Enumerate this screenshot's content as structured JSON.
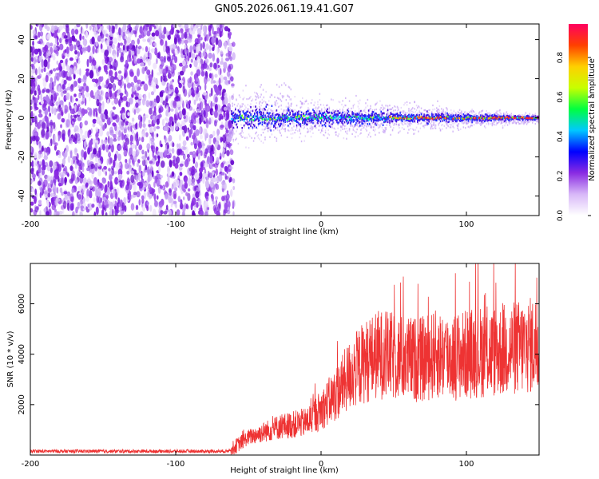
{
  "figure_title": "GN05.2026.061.19.41.G07",
  "chart_data": [
    {
      "type": "heatmap",
      "title": "GN05.2026.061.19.41.G07",
      "xlabel": "Height of straight line (km)",
      "ylabel": "Frequency (Hz)",
      "xlim": [
        -200,
        150
      ],
      "ylim": [
        -50,
        48
      ],
      "x_ticks": [
        -200,
        -100,
        0,
        100
      ],
      "y_ticks": [
        -40,
        -20,
        0,
        20,
        40
      ],
      "noise_region_x": [
        -200,
        -60
      ],
      "signal_start_x": -62,
      "ridge_center_hz": 0,
      "colorbar": {
        "label": "Normalized spectral amplitude",
        "range": [
          0,
          0.97
        ],
        "ticks": [
          0.0,
          0.2,
          0.4,
          0.6,
          0.8
        ],
        "colors": [
          "#ffffff",
          "#d8b8f8",
          "#8a2be2",
          "#0000ff",
          "#00c8ff",
          "#00ff40",
          "#c8ff00",
          "#ffd000",
          "#ff4000",
          "#ff0060"
        ]
      }
    },
    {
      "type": "line",
      "xlabel": "Height of straight line (km)",
      "ylabel": "SNR (10 * v/v)",
      "xlim": [
        -200,
        150
      ],
      "ylim": [
        0,
        7600
      ],
      "x_ticks": [
        -200,
        -100,
        0,
        100
      ],
      "y_ticks": [
        2000,
        4000,
        6000
      ],
      "color": "#ee3333",
      "series": [
        {
          "name": "SNR",
          "x": [
            -200,
            -150,
            -100,
            -65,
            -60,
            -50,
            -40,
            -30,
            -20,
            -10,
            0,
            10,
            20,
            30,
            40,
            50,
            60,
            70,
            80,
            90,
            100,
            110,
            120,
            130,
            140,
            150
          ],
          "y": [
            150,
            150,
            150,
            150,
            300,
            700,
            900,
            1100,
            1200,
            1300,
            1800,
            2400,
            3200,
            3700,
            4000,
            3900,
            3800,
            3800,
            4000,
            3900,
            4000,
            4100,
            4100,
            4200,
            4300,
            4400
          ]
        }
      ]
    }
  ]
}
